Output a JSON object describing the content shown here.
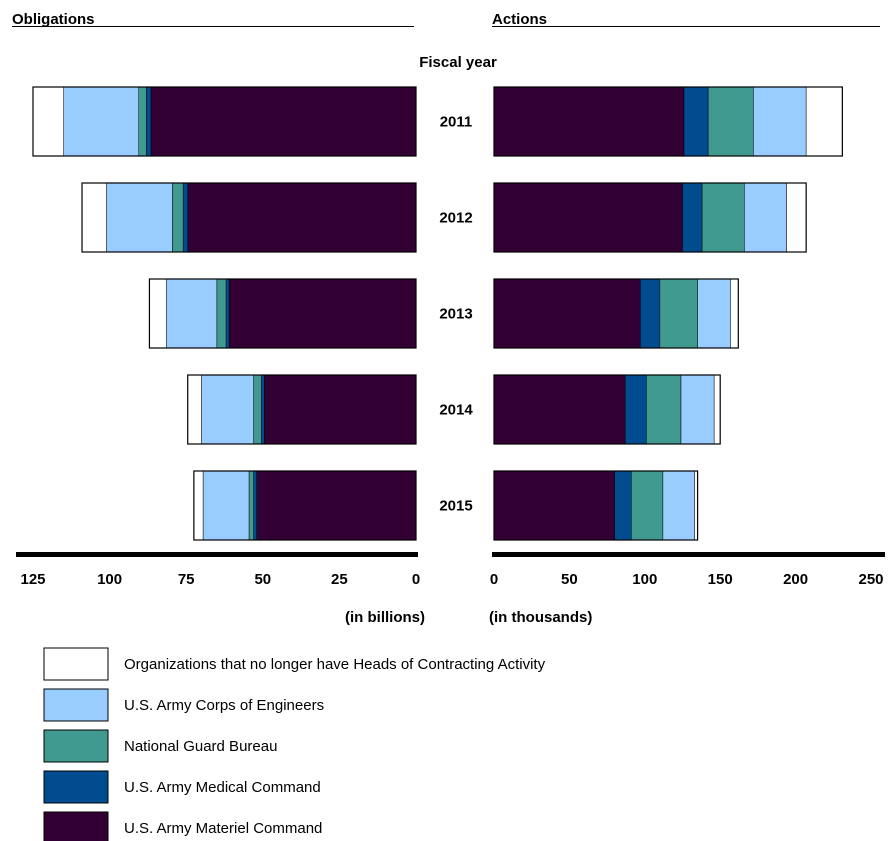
{
  "chart_data": {
    "type": "bar",
    "orientation": "horizontal",
    "stacked": true,
    "title": "",
    "category_label": "Fiscal year",
    "categories": [
      "2011",
      "2012",
      "2013",
      "2014",
      "2015"
    ],
    "legend_placement": "bottom",
    "series": [
      {
        "name": "U.S. Army Materiel Command",
        "color": "#330033"
      },
      {
        "name": "U.S. Army Medical Command",
        "color": "#004c8f"
      },
      {
        "name": "National Guard Bureau",
        "color": "#409a90"
      },
      {
        "name": "U.S. Army Corps of Engineers",
        "color": "#99ccff"
      },
      {
        "name": "Organizations that no longer have Heads of Contracting Activity",
        "color": "#ffffff"
      }
    ],
    "legend_order": [
      4,
      3,
      2,
      1,
      0
    ],
    "panels": [
      {
        "title": "Obligations",
        "unit_label": "(in billions)",
        "direction": "right-to-left",
        "xlim": [
          0,
          125
        ],
        "ticks": [
          125,
          100,
          75,
          50,
          25,
          0
        ],
        "values": [
          [
            86.5,
            1.5,
            2.5,
            24.5,
            10
          ],
          [
            74.5,
            1.5,
            3.5,
            21.5,
            8
          ],
          [
            61,
            1,
            3,
            16.5,
            5.5
          ],
          [
            49.5,
            1,
            2.5,
            17,
            4.5
          ],
          [
            52,
            1,
            1.5,
            15,
            3
          ]
        ]
      },
      {
        "title": "Actions",
        "unit_label": "(in thousands)",
        "direction": "left-to-right",
        "xlim": [
          0,
          250
        ],
        "ticks": [
          0,
          50,
          100,
          150,
          200,
          250
        ],
        "values": [
          [
            126,
            16,
            30,
            35,
            24
          ],
          [
            125,
            13,
            28,
            28,
            13
          ],
          [
            97,
            13,
            25,
            22,
            5
          ],
          [
            87,
            14,
            23,
            22,
            4
          ],
          [
            80,
            11,
            21,
            21,
            2
          ]
        ]
      }
    ]
  }
}
